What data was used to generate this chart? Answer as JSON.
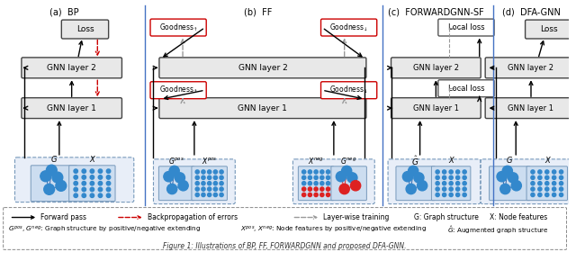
{
  "title": "Figure 1: Illustrations of BP, FF, FORWARDGNN and proposed DFA-GNN.",
  "sections": [
    "(a)  BP",
    "(b)  FF",
    "(c)  FORWARDGNN-SF",
    "(d)  DFA-GNN"
  ],
  "bg_color": "#ffffff",
  "box_fill": "#e8e8e8",
  "box_edge": "#444444",
  "white_fill": "#ffffff",
  "blue_sep": "#4472c4",
  "red_color": "#cc0000",
  "gray_color": "#999999",
  "graph_fill": "#ccddf0",
  "graph_border": "#7799bb",
  "container_fill": "#e8eef8",
  "container_border": "#7799bb"
}
